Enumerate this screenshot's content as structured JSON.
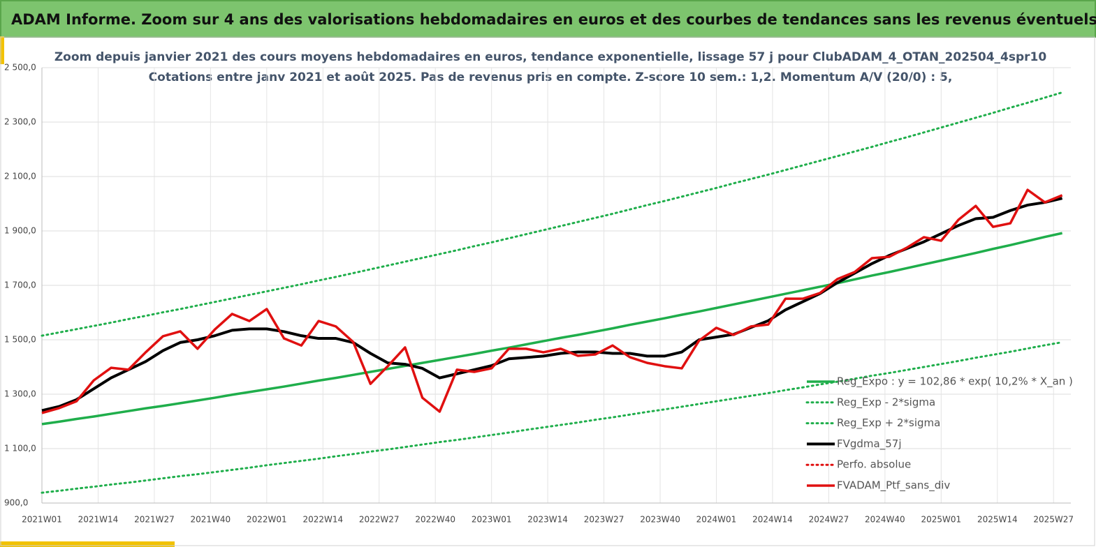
{
  "header": {
    "title": "ADAM Informe. Zoom sur 4 ans des valorisations hebdomadaires en euros et des courbes de tendances sans les revenus éventuels"
  },
  "chart_data": {
    "type": "line",
    "title": "Zoom depuis janvier 2021 des cours moyens hebdomadaires  en euros, tendance exponentielle, lissage 57 j pour ClubADAM_4_OTAN_202504_4spr10",
    "subtitle": "Cotations  entre janv 2021 et août 2025. Pas de revenus pris en compte. Z-score 10 sem.: 1,2. Momentum A/V (20/0) : 5,",
    "x": [
      0,
      4,
      8,
      12,
      16,
      20,
      24,
      28,
      32,
      36,
      40,
      44,
      48,
      52,
      56,
      60,
      64,
      68,
      72,
      76,
      80,
      84,
      88,
      92,
      96,
      100,
      104,
      108,
      112,
      116,
      120,
      124,
      128,
      132,
      136,
      140,
      144,
      148,
      152,
      156,
      160,
      164,
      168,
      172,
      176,
      180,
      184,
      188,
      192,
      196,
      200,
      204,
      208,
      212,
      216,
      220,
      224,
      228,
      232,
      236
    ],
    "xlim": [
      0,
      238
    ],
    "xticks": [
      {
        "value": 0,
        "label": "2021W01"
      },
      {
        "value": 13,
        "label": "2021W14"
      },
      {
        "value": 26,
        "label": "2021W27"
      },
      {
        "value": 39,
        "label": "2021W40"
      },
      {
        "value": 52,
        "label": "2022W01"
      },
      {
        "value": 65,
        "label": "2022W14"
      },
      {
        "value": 78,
        "label": "2022W27"
      },
      {
        "value": 91,
        "label": "2022W40"
      },
      {
        "value": 104,
        "label": "2023W01"
      },
      {
        "value": 117,
        "label": "2023W14"
      },
      {
        "value": 130,
        "label": "2023W27"
      },
      {
        "value": 143,
        "label": "2023W40"
      },
      {
        "value": 156,
        "label": "2024W01"
      },
      {
        "value": 169,
        "label": "2024W14"
      },
      {
        "value": 182,
        "label": "2024W27"
      },
      {
        "value": 195,
        "label": "2024W40"
      },
      {
        "value": 208,
        "label": "2025W01"
      },
      {
        "value": 221,
        "label": "2025W14"
      },
      {
        "value": 234,
        "label": "2025W27"
      }
    ],
    "ylim": [
      900,
      2500
    ],
    "yticks": [
      {
        "value": 900,
        "label": "900,0"
      },
      {
        "value": 1100,
        "label": "1 100,0"
      },
      {
        "value": 1300,
        "label": "1 300,0"
      },
      {
        "value": 1500,
        "label": "1 500,0"
      },
      {
        "value": 1700,
        "label": "1 700,0"
      },
      {
        "value": 1900,
        "label": "1 900,0"
      },
      {
        "value": 2100,
        "label": "2 100,0"
      },
      {
        "value": 2300,
        "label": "2 300,0"
      },
      {
        "value": 2500,
        "label": "2 500,0"
      }
    ],
    "grid": true,
    "legend": "lower right",
    "series": [
      {
        "name": "Reg_Expo : y = 102,86 * exp( 10,2% *  X_an )",
        "color": "#1fae4b",
        "style": "solid",
        "values": [
          1190,
          1199,
          1209,
          1218,
          1228,
          1238,
          1248,
          1257,
          1267,
          1277,
          1287,
          1298,
          1308,
          1318,
          1328,
          1339,
          1350,
          1360,
          1371,
          1382,
          1393,
          1404,
          1415,
          1426,
          1437,
          1448,
          1460,
          1471,
          1483,
          1495,
          1507,
          1518,
          1530,
          1542,
          1555,
          1567,
          1579,
          1592,
          1604,
          1617,
          1630,
          1643,
          1656,
          1669,
          1682,
          1695,
          1708,
          1722,
          1736,
          1749,
          1763,
          1777,
          1791,
          1805,
          1819,
          1834,
          1848,
          1863,
          1878,
          1892
        ]
      },
      {
        "name": "Reg_Exp - 2*sigma",
        "color": "#1fae4b",
        "style": "dotted",
        "values": [
          938,
          945,
          953,
          960,
          968,
          975,
          983,
          991,
          999,
          1006,
          1014,
          1022,
          1030,
          1039,
          1047,
          1055,
          1063,
          1072,
          1080,
          1089,
          1097,
          1106,
          1115,
          1124,
          1132,
          1141,
          1150,
          1159,
          1169,
          1178,
          1187,
          1196,
          1206,
          1215,
          1225,
          1235,
          1244,
          1254,
          1264,
          1274,
          1284,
          1294,
          1304,
          1315,
          1325,
          1336,
          1346,
          1357,
          1368,
          1378,
          1389,
          1400,
          1411,
          1422,
          1434,
          1445,
          1456,
          1468,
          1480,
          1491
        ]
      },
      {
        "name": "Reg_Exp + 2*sigma",
        "color": "#1fae4b",
        "style": "dotted",
        "values": [
          1515,
          1527,
          1539,
          1551,
          1563,
          1576,
          1588,
          1601,
          1613,
          1626,
          1639,
          1652,
          1665,
          1678,
          1691,
          1704,
          1718,
          1731,
          1745,
          1759,
          1773,
          1787,
          1801,
          1815,
          1829,
          1844,
          1858,
          1873,
          1888,
          1903,
          1918,
          1933,
          1948,
          1963,
          1979,
          1995,
          2010,
          2026,
          2042,
          2058,
          2075,
          2091,
          2107,
          2124,
          2141,
          2158,
          2175,
          2192,
          2209,
          2227,
          2244,
          2262,
          2280,
          2298,
          2316,
          2334,
          2353,
          2371,
          2390,
          2409
        ]
      },
      {
        "name": "FVgdma_57j",
        "color": "#000000",
        "style": "solid",
        "values": [
          1240,
          1255,
          1280,
          1320,
          1360,
          1390,
          1420,
          1460,
          1490,
          1500,
          1515,
          1535,
          1540,
          1540,
          1530,
          1515,
          1505,
          1505,
          1490,
          1450,
          1415,
          1410,
          1395,
          1360,
          1375,
          1390,
          1405,
          1430,
          1435,
          1440,
          1450,
          1455,
          1455,
          1450,
          1450,
          1440,
          1440,
          1455,
          1500,
          1510,
          1520,
          1545,
          1570,
          1610,
          1640,
          1670,
          1710,
          1745,
          1780,
          1810,
          1835,
          1860,
          1890,
          1920,
          1945,
          1950,
          1975,
          1995,
          2005,
          2020
        ]
      },
      {
        "name": "Perfo. absolue",
        "color": "#e01010",
        "style": "dotted",
        "values": [
          null,
          null,
          null,
          null,
          null,
          null,
          null,
          null,
          null,
          null,
          null,
          null,
          null,
          null,
          null,
          null,
          null,
          null,
          null,
          null,
          null,
          null,
          null,
          null,
          null,
          null,
          null,
          null,
          null,
          null,
          null,
          null,
          null,
          null,
          null,
          null,
          null,
          null,
          null,
          null,
          null,
          null,
          null,
          null,
          null,
          null,
          null,
          null,
          null,
          null,
          null,
          null,
          null,
          null,
          null,
          null,
          null,
          null,
          null,
          null
        ]
      },
      {
        "name": "FVADAM_Ptf_sans_div",
        "color": "#e01010",
        "style": "solid",
        "values": [
          1231,
          1249,
          1274,
          1351,
          1397,
          1390,
          1454,
          1513,
          1531,
          1467,
          1538,
          1595,
          1569,
          1613,
          1505,
          1479,
          1569,
          1549,
          1492,
          1338,
          1403,
          1472,
          1287,
          1236,
          1390,
          1382,
          1395,
          1467,
          1467,
          1454,
          1467,
          1441,
          1446,
          1479,
          1436,
          1415,
          1403,
          1395,
          1497,
          1544,
          1518,
          1549,
          1556,
          1651,
          1651,
          1672,
          1723,
          1749,
          1800,
          1805,
          1838,
          1877,
          1864,
          1941,
          1992,
          1915,
          1928,
          2051,
          2005,
          2031
        ]
      }
    ]
  }
}
